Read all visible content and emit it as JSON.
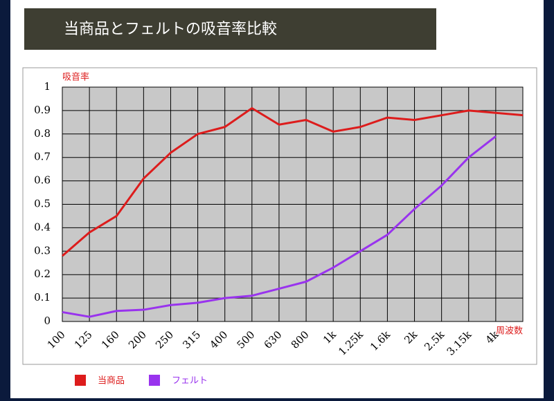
{
  "chart_data": {
    "type": "line",
    "title": "当商品とフェルトの吸音率比較",
    "y_label": "吸音率",
    "x_label": "周波数",
    "categories": [
      "100",
      "125",
      "160",
      "200",
      "250",
      "315",
      "400",
      "500",
      "630",
      "800",
      "1k",
      "1.25k",
      "1.6k",
      "2k",
      "2.5k",
      "3.15k",
      "4k",
      null
    ],
    "series": [
      {
        "name": "当商品",
        "color": "#dd1c1c",
        "values": [
          0.28,
          0.38,
          0.45,
          0.61,
          0.72,
          0.8,
          0.83,
          0.91,
          0.84,
          0.86,
          0.81,
          0.83,
          0.87,
          0.86,
          0.88,
          0.9,
          0.89,
          0.88
        ]
      },
      {
        "name": "フェルト",
        "color": "#9933ee",
        "values": [
          0.04,
          0.02,
          0.045,
          0.05,
          0.07,
          0.08,
          0.1,
          0.11,
          0.14,
          0.17,
          0.23,
          0.3,
          0.37,
          0.48,
          0.58,
          0.7,
          0.79,
          null
        ]
      }
    ],
    "ylim": [
      0,
      1
    ],
    "yticks": [
      0,
      0.1,
      0.2,
      0.3,
      0.4,
      0.5,
      0.6,
      0.7,
      0.8,
      0.9,
      1
    ],
    "grid": true
  }
}
